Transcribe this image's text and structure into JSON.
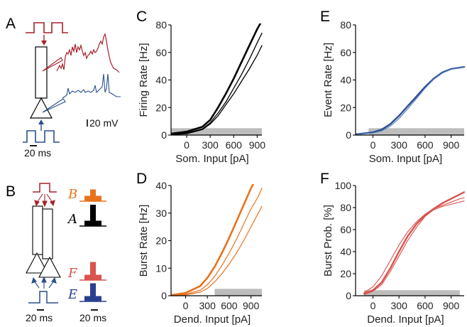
{
  "colors": {
    "red": "#a5212b",
    "blue": "#2b4f8e",
    "orange": "#e8721c",
    "black": "#000000",
    "pink": "#d9534f",
    "navy": "#2a3f8f",
    "gray": "#bdbdbd"
  },
  "schematic_a": {
    "letter": "A",
    "scale_mv": "20 mV",
    "scale_ms": "20 ms"
  },
  "schematic_b": {
    "letter": "B",
    "scale_ms_left": "20 ms",
    "scale_ms_right": "20 ms",
    "hist_labels": [
      "B",
      "A",
      "F",
      "E"
    ],
    "hist_colors": [
      "#e8721c",
      "#000000",
      "#d9534f",
      "#2a3f8f"
    ],
    "hist_bars": [
      [
        0.25,
        0.55,
        0.25
      ],
      [
        0.25,
        1.0,
        0.25
      ],
      [
        0.25,
        0.85,
        0.25
      ],
      [
        0.25,
        0.85,
        0.25
      ]
    ]
  },
  "chart_data": [
    {
      "panel": "C",
      "type": "line",
      "ylabel": "Firing Rate [Hz]",
      "xlabel": "Som. Input [pA]",
      "xticks": [
        0,
        300,
        600,
        900
      ],
      "yticks": [
        0,
        20,
        40,
        60,
        80
      ],
      "xlim": [
        -200,
        960
      ],
      "ylim": [
        0,
        80
      ],
      "shade": [
        -200,
        960,
        0,
        5
      ],
      "series": [
        {
          "color": "#000000",
          "width": 2.6,
          "x": [
            -200,
            0,
            200,
            300,
            400,
            500,
            600,
            700,
            800,
            900,
            960
          ],
          "y": [
            1,
            2.5,
            6,
            11,
            20,
            30,
            41,
            53,
            65,
            77,
            83
          ]
        },
        {
          "color": "#000000",
          "width": 1.3,
          "x": [
            -200,
            0,
            200,
            300,
            400,
            500,
            600,
            700,
            800,
            900,
            960
          ],
          "y": [
            0.5,
            1.5,
            4.5,
            9,
            16,
            24,
            34,
            44,
            55,
            67,
            74
          ]
        },
        {
          "color": "#000000",
          "width": 1.3,
          "x": [
            -200,
            0,
            200,
            300,
            400,
            500,
            600,
            700,
            800,
            900,
            960
          ],
          "y": [
            0.3,
            1,
            4,
            8,
            14,
            22,
            30,
            39,
            48,
            58,
            65
          ]
        }
      ]
    },
    {
      "panel": "D",
      "type": "line",
      "ylabel": "Burst Rate [Hz]",
      "xlabel": "Dend. Input [pA]",
      "xticks": [
        0,
        300,
        600,
        900
      ],
      "yticks": [
        0,
        10,
        20,
        30,
        40
      ],
      "xlim": [
        -200,
        1050
      ],
      "ylim": [
        0,
        40
      ],
      "shade": [
        400,
        1050,
        0,
        2.5
      ],
      "series": [
        {
          "color": "#e8721c",
          "width": 2.6,
          "x": [
            -200,
            0,
            200,
            300,
            400,
            500,
            600,
            700,
            800,
            900,
            960
          ],
          "y": [
            0.2,
            1,
            3.5,
            6.5,
            10.5,
            15.5,
            21,
            27,
            33,
            39,
            42
          ]
        },
        {
          "color": "#e8721c",
          "width": 1.2,
          "x": [
            -200,
            0,
            200,
            300,
            400,
            500,
            600,
            700,
            800,
            900,
            1000,
            1050
          ],
          "y": [
            0.1,
            0.5,
            2,
            4,
            7,
            11,
            15.5,
            20.5,
            26,
            31.5,
            36,
            39
          ]
        },
        {
          "color": "#e8721c",
          "width": 1.2,
          "x": [
            -200,
            0,
            200,
            300,
            400,
            500,
            600,
            700,
            800,
            900,
            1000,
            1050
          ],
          "y": [
            0,
            0.3,
            1.3,
            2.6,
            5,
            8,
            11.5,
            15.5,
            20,
            25,
            30,
            32.5
          ]
        }
      ]
    },
    {
      "panel": "E",
      "type": "line",
      "ylabel": "Event Rate [Hz]",
      "xlabel": "Som. Input [pA]",
      "xticks": [
        0,
        300,
        600,
        900
      ],
      "yticks": [
        0,
        20,
        40,
        60,
        80
      ],
      "xlim": [
        -200,
        1050
      ],
      "ylim": [
        0,
        80
      ],
      "shade": [
        -50,
        1050,
        0,
        5
      ],
      "series": [
        {
          "color": "#2b4f8e",
          "width": 2.4,
          "x": [
            -200,
            0,
            100,
            200,
            300,
            400,
            500,
            600,
            700,
            800,
            900,
            1000,
            1050
          ],
          "y": [
            0.5,
            2,
            4,
            8,
            14,
            21,
            28,
            35,
            41,
            45.5,
            48,
            49,
            49.5
          ]
        },
        {
          "color": "#5a7fc0",
          "width": 1.2,
          "x": [
            -200,
            0,
            100,
            200,
            300,
            400,
            500,
            600,
            700,
            800,
            900,
            1000,
            1050
          ],
          "y": [
            0.3,
            1.5,
            3,
            6.5,
            12,
            19,
            26.5,
            34,
            40.5,
            45,
            47.8,
            49,
            49.5
          ]
        }
      ]
    },
    {
      "panel": "F",
      "type": "line",
      "ylabel": "Burst Prob. [%]",
      "xlabel": "Dend. Input [pA]",
      "xticks": [
        0,
        300,
        600,
        900
      ],
      "yticks": [
        0,
        20,
        40,
        60,
        80,
        100
      ],
      "xlim": [
        -200,
        1050
      ],
      "ylim": [
        0,
        100
      ],
      "shade": [
        -100,
        1000,
        0,
        5
      ],
      "series": [
        {
          "color": "#d9534f",
          "width": 2.4,
          "x": [
            -100,
            0,
            100,
            200,
            300,
            400,
            500,
            600,
            700,
            800,
            900,
            1000,
            1050
          ],
          "y": [
            2,
            5,
            12,
            25,
            40,
            54,
            65,
            73,
            79,
            84,
            88,
            92,
            94
          ]
        },
        {
          "color": "#d9534f",
          "width": 1.1,
          "x": [
            -100,
            0,
            100,
            200,
            300,
            400,
            500,
            600,
            700,
            800,
            900,
            1000,
            1050
          ],
          "y": [
            3,
            8,
            18,
            32,
            46,
            58,
            67,
            74,
            79,
            82,
            85,
            88,
            89
          ]
        },
        {
          "color": "#d9534f",
          "width": 1.1,
          "x": [
            -100,
            0,
            100,
            200,
            300,
            400,
            500,
            600,
            700,
            800,
            900,
            1000,
            1050
          ],
          "y": [
            1,
            4,
            10,
            22,
            36,
            50,
            62,
            72,
            78,
            81,
            83,
            85,
            86
          ]
        }
      ]
    }
  ],
  "panel_letters": [
    "C",
    "D",
    "E",
    "F"
  ]
}
